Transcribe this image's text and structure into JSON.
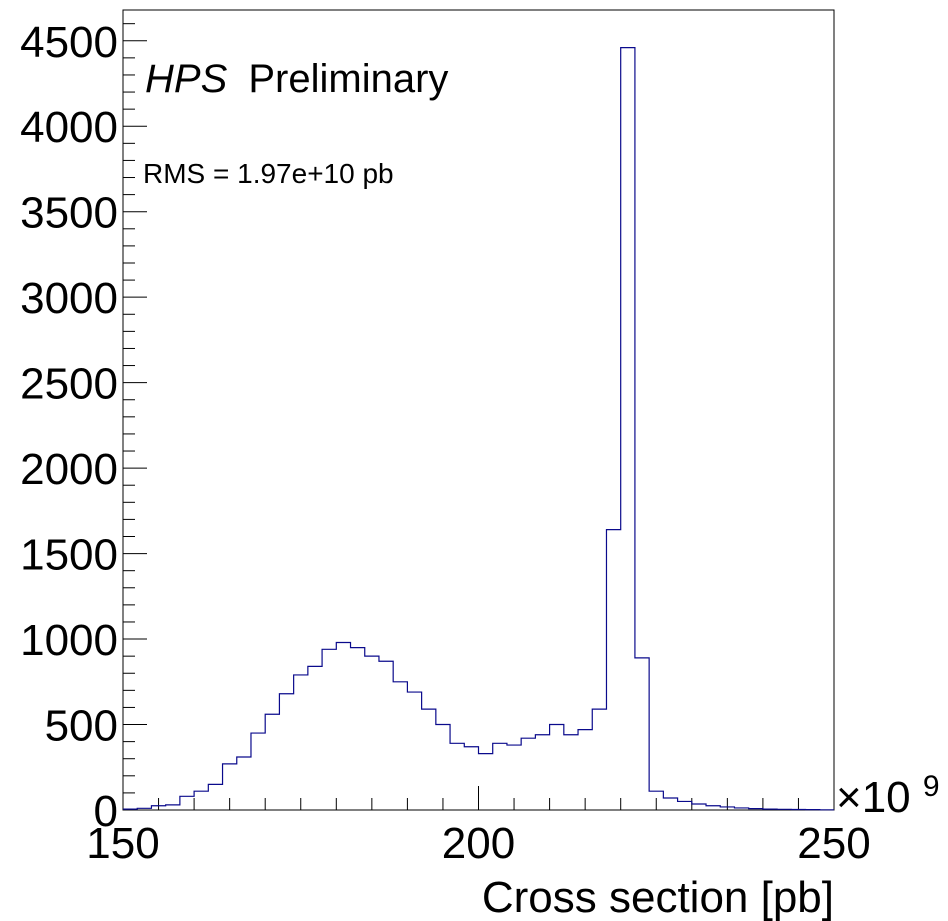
{
  "chart_data": {
    "type": "histogram",
    "title_italic": "HPS",
    "title_rest": "Preliminary",
    "annotation": "RMS = 1.97e+10 pb",
    "xlabel": "Cross section [pb]",
    "x_multiplier_base": "×10",
    "x_multiplier_exp": "9",
    "xlim": [
      150,
      250
    ],
    "ylim": [
      0,
      4680
    ],
    "x_ticks": [
      150,
      200,
      250
    ],
    "y_ticks": [
      0,
      500,
      1000,
      1500,
      2000,
      2500,
      3000,
      3500,
      4000,
      4500
    ],
    "bin_width": 2,
    "bin_edges_start": 150,
    "values": [
      5,
      10,
      25,
      30,
      80,
      110,
      150,
      270,
      310,
      450,
      560,
      680,
      790,
      840,
      940,
      980,
      950,
      900,
      870,
      750,
      690,
      590,
      500,
      390,
      370,
      330,
      390,
      380,
      420,
      440,
      500,
      440,
      470,
      590,
      1640,
      4460,
      890,
      110,
      70,
      50,
      35,
      25,
      18,
      12,
      8,
      5,
      4,
      3,
      2,
      1
    ],
    "line_color": "#0a0a8c"
  }
}
